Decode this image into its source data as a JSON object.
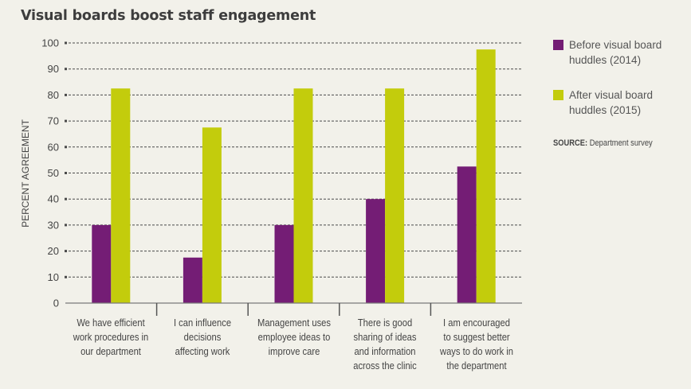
{
  "chart_data": {
    "type": "bar",
    "title": "Visual boards boost staff engagement",
    "xlabel": "",
    "ylabel": "PERCENT AGREEMENT",
    "ylim": [
      0,
      100
    ],
    "yticks": [
      0,
      10,
      20,
      30,
      40,
      50,
      60,
      70,
      80,
      90,
      100
    ],
    "grid": true,
    "legend_position": "right",
    "categories": [
      "We have efficient work procedures in our department",
      "I can influence decisions affecting work",
      "Management uses employee ideas to improve care",
      "There is good sharing of ideas and information across the clinic",
      "I am encouraged to suggest better ways to do work in the department"
    ],
    "category_lines": [
      [
        "We have efficient",
        "work procedures in",
        "our department"
      ],
      [
        "I can influence",
        "decisions",
        "affecting work"
      ],
      [
        "Management uses",
        "employee ideas to",
        "improve care"
      ],
      [
        "There is good",
        "sharing of ideas",
        "and information",
        "across the clinic"
      ],
      [
        "I am encouraged",
        "to suggest better",
        "ways to do work in",
        "the department"
      ]
    ],
    "series": [
      {
        "name": "Before visual board huddles (2014)",
        "color": "#741d75",
        "values": [
          30,
          17.5,
          30,
          40,
          52.5
        ]
      },
      {
        "name": "After visual board huddles (2015)",
        "color": "#c3cc0c",
        "values": [
          82.5,
          67.5,
          82.5,
          82.5,
          97.5
        ]
      }
    ],
    "legend": [
      {
        "lines": [
          "Before visual board",
          "huddles (2014)"
        ],
        "color": "#741d75"
      },
      {
        "lines": [
          "After visual board",
          "huddles (2015)"
        ],
        "color": "#c3cc0c"
      }
    ],
    "source_label": "SOURCE:",
    "source_text": "Department survey"
  }
}
